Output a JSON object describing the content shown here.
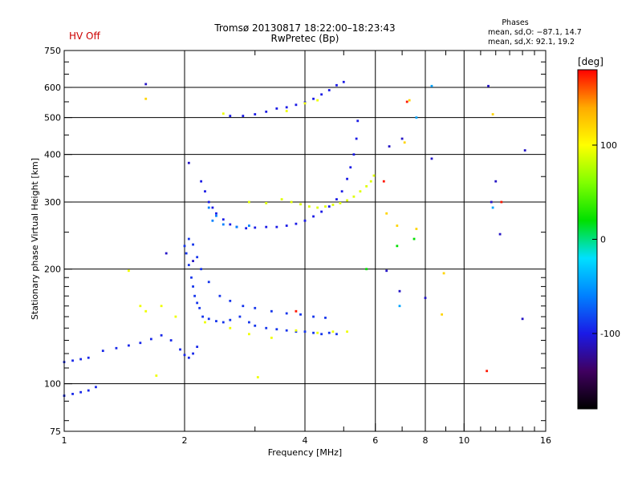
{
  "header": {
    "status": "HV Off",
    "title_line1": "Tromsø 20130817 18:22:00–18:23:43",
    "title_line2": "RwPretec (Bp)",
    "stats_title": "Phases",
    "stats_o": "mean, sd,O: −87.1, 14.7",
    "stats_x": "mean, sd,X:  92.1, 19.2"
  },
  "colors": {
    "status": "#cc0000",
    "axis": "#000000",
    "background": "#ffffff"
  },
  "chart_data": {
    "type": "scatter",
    "xlabel": "Frequency [MHz]",
    "ylabel": "Stationary phase Virtual Height [km]",
    "xscale": "log",
    "yscale": "log",
    "xlim": [
      1,
      16
    ],
    "ylim": [
      75,
      750
    ],
    "xticks": [
      1,
      2,
      4,
      6,
      8,
      10,
      16
    ],
    "xtick_labels": [
      "1",
      "2",
      "4",
      "6",
      "8",
      "10",
      "16"
    ],
    "xgrid": [
      2,
      4,
      6,
      8,
      10
    ],
    "xminor": [
      3,
      5,
      7,
      9,
      11,
      12,
      13,
      14,
      15
    ],
    "yticks": [
      75,
      100,
      200,
      300,
      400,
      500,
      600,
      750
    ],
    "ytick_labels": [
      "75",
      "100",
      "200",
      "300",
      "400",
      "500",
      "600",
      "750"
    ],
    "ygrid": [
      100,
      200,
      300,
      400,
      500,
      600
    ],
    "yminor": [
      80,
      90,
      110,
      120,
      130,
      140,
      150,
      160,
      170,
      180,
      190,
      250,
      350,
      450,
      550,
      650,
      700
    ],
    "grid": true,
    "colorbar": {
      "label": "[deg]",
      "range": [
        -180,
        180
      ],
      "ticks": [
        100,
        0,
        -100
      ],
      "tick_labels": [
        "100",
        "0",
        "-100"
      ],
      "stops": [
        "#000000",
        "#400060",
        "#1a1ae6",
        "#0080ff",
        "#00e0ff",
        "#00e000",
        "#80ff00",
        "#ffff00",
        "#ffaa00",
        "#ff0000"
      ]
    },
    "series": [
      {
        "trace": "E-layer low",
        "phase": -95,
        "points": [
          [
            1.0,
            93
          ],
          [
            1.05,
            94
          ],
          [
            1.1,
            95
          ],
          [
            1.15,
            96
          ],
          [
            1.2,
            98
          ],
          [
            1.0,
            114
          ],
          [
            1.05,
            115
          ],
          [
            1.1,
            116
          ],
          [
            1.15,
            117
          ],
          [
            1.25,
            122
          ],
          [
            1.35,
            124
          ],
          [
            1.45,
            126
          ],
          [
            1.55,
            128
          ],
          [
            1.65,
            131
          ],
          [
            1.75,
            134
          ],
          [
            1.85,
            130
          ],
          [
            1.95,
            123
          ],
          [
            2.0,
            119
          ],
          [
            2.05,
            117
          ],
          [
            2.1,
            120
          ],
          [
            2.15,
            125
          ]
        ]
      },
      {
        "trace": "E/Es scatter",
        "phase": -90,
        "points": [
          [
            2.0,
            230
          ],
          [
            2.02,
            220
          ],
          [
            2.05,
            205
          ],
          [
            2.08,
            190
          ],
          [
            2.1,
            180
          ],
          [
            2.12,
            170
          ],
          [
            2.15,
            163
          ],
          [
            2.18,
            158
          ],
          [
            2.22,
            150
          ],
          [
            2.3,
            148
          ],
          [
            2.4,
            146
          ],
          [
            2.5,
            145
          ],
          [
            2.6,
            147
          ],
          [
            2.75,
            150
          ],
          [
            2.9,
            145
          ],
          [
            3.0,
            142
          ],
          [
            3.2,
            140
          ],
          [
            3.4,
            139
          ],
          [
            3.6,
            138
          ],
          [
            3.8,
            137
          ],
          [
            4.0,
            137
          ],
          [
            4.2,
            136
          ],
          [
            4.4,
            135
          ],
          [
            4.6,
            136
          ],
          [
            4.8,
            135
          ],
          [
            2.05,
            240
          ],
          [
            2.1,
            232
          ],
          [
            2.15,
            215
          ],
          [
            2.2,
            200
          ],
          [
            2.3,
            185
          ],
          [
            2.45,
            170
          ],
          [
            2.6,
            165
          ],
          [
            2.8,
            160
          ],
          [
            3.0,
            158
          ],
          [
            3.3,
            155
          ],
          [
            3.6,
            153
          ],
          [
            3.9,
            152
          ],
          [
            4.2,
            150
          ],
          [
            4.5,
            149
          ]
        ]
      },
      {
        "trace": "E/Es scatter yellow",
        "phase": 95,
        "points": [
          [
            1.45,
            198
          ],
          [
            1.55,
            160
          ],
          [
            1.6,
            155
          ],
          [
            1.75,
            160
          ],
          [
            1.9,
            150
          ],
          [
            2.25,
            145
          ],
          [
            2.6,
            140
          ],
          [
            2.9,
            135
          ],
          [
            3.3,
            132
          ],
          [
            3.8,
            138
          ],
          [
            4.3,
            136
          ],
          [
            4.7,
            137
          ],
          [
            1.7,
            105
          ],
          [
            3.05,
            104
          ],
          [
            5.1,
            137
          ]
        ]
      },
      {
        "trace": "F-layer O",
        "phase": -100,
        "points": [
          [
            2.2,
            340
          ],
          [
            2.25,
            320
          ],
          [
            2.3,
            300
          ],
          [
            2.35,
            290
          ],
          [
            2.4,
            280
          ],
          [
            2.5,
            270
          ],
          [
            2.6,
            262
          ],
          [
            2.7,
            258
          ],
          [
            2.85,
            256
          ],
          [
            3.0,
            257
          ],
          [
            3.2,
            258
          ],
          [
            3.4,
            258
          ],
          [
            3.6,
            260
          ],
          [
            3.8,
            263
          ],
          [
            4.0,
            268
          ],
          [
            4.2,
            275
          ],
          [
            4.4,
            283
          ],
          [
            4.6,
            292
          ],
          [
            4.8,
            305
          ],
          [
            4.95,
            320
          ],
          [
            5.1,
            345
          ],
          [
            5.2,
            370
          ],
          [
            5.3,
            400
          ],
          [
            5.38,
            440
          ],
          [
            5.42,
            490
          ]
        ]
      },
      {
        "trace": "F-layer cyan",
        "phase": -60,
        "points": [
          [
            2.35,
            268
          ],
          [
            2.5,
            262
          ],
          [
            2.7,
            258
          ],
          [
            2.9,
            260
          ],
          [
            2.3,
            290
          ],
          [
            2.4,
            276
          ]
        ]
      },
      {
        "trace": "F-layer X",
        "phase": 90,
        "points": [
          [
            3.5,
            305
          ],
          [
            3.7,
            300
          ],
          [
            3.9,
            296
          ],
          [
            4.1,
            292
          ],
          [
            4.3,
            290
          ],
          [
            4.5,
            292
          ],
          [
            4.7,
            295
          ],
          [
            4.9,
            298
          ],
          [
            5.1,
            303
          ],
          [
            5.3,
            310
          ],
          [
            5.5,
            320
          ],
          [
            5.7,
            330
          ],
          [
            5.85,
            340
          ],
          [
            5.95,
            352
          ],
          [
            2.9,
            300
          ],
          [
            3.2,
            298
          ]
        ]
      },
      {
        "trace": "Multiple echo",
        "phase": -100,
        "points": [
          [
            2.6,
            505
          ],
          [
            2.8,
            505
          ],
          [
            3.0,
            510
          ],
          [
            3.2,
            518
          ],
          [
            3.4,
            528
          ],
          [
            3.6,
            532
          ],
          [
            3.8,
            540
          ],
          [
            4.0,
            548
          ],
          [
            4.2,
            560
          ],
          [
            4.4,
            575
          ],
          [
            4.6,
            590
          ],
          [
            4.8,
            608
          ],
          [
            5.0,
            620
          ]
        ]
      },
      {
        "trace": "Multiple echo X",
        "phase": 95,
        "points": [
          [
            2.5,
            512
          ],
          [
            3.6,
            520
          ],
          [
            4.0,
            545
          ],
          [
            4.3,
            555
          ]
        ]
      },
      {
        "trace": "Isolated",
        "phase": -110,
        "points": [
          [
            1.6,
            612
          ],
          [
            2.05,
            380
          ],
          [
            1.8,
            220
          ],
          [
            2.1,
            210
          ],
          [
            6.5,
            420
          ],
          [
            7.0,
            440
          ],
          [
            8.3,
            390
          ],
          [
            6.4,
            198
          ],
          [
            6.9,
            175
          ],
          [
            8.0,
            168
          ],
          [
            12.0,
            340
          ],
          [
            12.3,
            247
          ],
          [
            14.2,
            410
          ],
          [
            14.0,
            148
          ],
          [
            11.5,
            605
          ],
          [
            11.7,
            300
          ]
        ]
      },
      {
        "trace": "Isolated X",
        "phase": 120,
        "points": [
          [
            1.6,
            560
          ],
          [
            7.3,
            555
          ],
          [
            7.1,
            430
          ],
          [
            8.9,
            195
          ],
          [
            8.8,
            152
          ],
          [
            11.8,
            510
          ],
          [
            6.4,
            280
          ],
          [
            6.8,
            260
          ],
          [
            7.6,
            255
          ]
        ]
      },
      {
        "trace": "Isolated red",
        "phase": 175,
        "points": [
          [
            3.8,
            155
          ],
          [
            12.4,
            300
          ],
          [
            11.4,
            108
          ],
          [
            6.3,
            340
          ],
          [
            7.2,
            550
          ]
        ]
      },
      {
        "trace": "Isolated green",
        "phase": 20,
        "points": [
          [
            6.8,
            230
          ],
          [
            7.5,
            240
          ],
          [
            5.7,
            200
          ]
        ]
      },
      {
        "trace": "Isolated cyan",
        "phase": -45,
        "points": [
          [
            7.6,
            500
          ],
          [
            11.8,
            290
          ],
          [
            6.9,
            160
          ],
          [
            8.3,
            605
          ]
        ]
      }
    ]
  }
}
